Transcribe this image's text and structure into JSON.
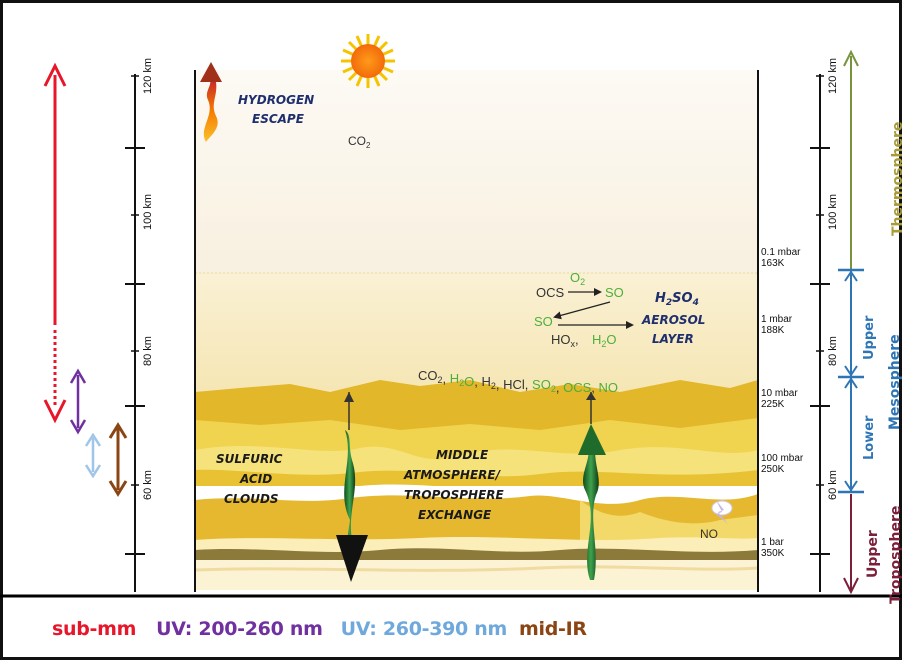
{
  "left_scale": {
    "ticks": [
      "120 km",
      "100 km",
      "80 km",
      "60 km"
    ]
  },
  "right_scale": {
    "ticks": [
      "120 km",
      "100 km",
      "80 km",
      "60 km"
    ]
  },
  "pressure_labels": [
    {
      "p": "0.1 mbar",
      "t": "163K"
    },
    {
      "p": "1 mbar",
      "t": "188K"
    },
    {
      "p": "10 mbar",
      "t": "225K"
    },
    {
      "p": "100 mbar",
      "t": "250K"
    },
    {
      "p": "1 bar",
      "t": "350K"
    }
  ],
  "regions": {
    "hydrogen": [
      "HYDROGEN",
      "ESCAPE"
    ],
    "co2": "CO",
    "co2_sub": "2",
    "aerosol": [
      "AEROSOL",
      "LAYER"
    ],
    "h2so4": {
      "h": "H",
      "s2": "2",
      "so": "SO",
      "s4": "4"
    },
    "clouds": [
      "SULFURIC",
      "ACID",
      "CLOUDS"
    ],
    "exchange": [
      "MIDDLE",
      "ATMOSPHERE/",
      "TROPOSPHERE",
      "EXCHANGE"
    ],
    "no": "NO"
  },
  "chemistry": {
    "ocs": "OCS",
    "o2": "O",
    "o2_sub": "2",
    "so_top": "SO",
    "so_left": "SO",
    "hox": "HO",
    "hox_sub": "x",
    "comma": ",",
    "h2o": "H",
    "h2o_sub": "2",
    "h2o_o": "O"
  },
  "species_line": [
    {
      "t": "CO",
      "s": "2",
      "c": "#333333"
    },
    {
      "t": ", ",
      "s": "",
      "c": "#333333"
    },
    {
      "t": "H",
      "s": "2",
      "c": "#4caf3a"
    },
    {
      "t": "O",
      "s": "",
      "c": "#4caf3a"
    },
    {
      "t": ", H",
      "s": "2",
      "c": "#333333"
    },
    {
      "t": ", HCl, ",
      "s": "",
      "c": "#333333"
    },
    {
      "t": "SO",
      "s": "2",
      "c": "#4caf3a"
    },
    {
      "t": ", ",
      "s": "",
      "c": "#333333"
    },
    {
      "t": "OCS",
      "s": "",
      "c": "#4caf3a"
    },
    {
      "t": ", ",
      "s": "",
      "c": "#333333"
    },
    {
      "t": "NO",
      "s": "",
      "c": "#4caf3a"
    }
  ],
  "layers": {
    "thermosphere": "Thermosphere",
    "upper_meso": "Upper",
    "lower_meso": "Lower",
    "mesosphere": "Mesosphere",
    "upper_tropo": "Upper",
    "troposphere": "Troposphere"
  },
  "legend": {
    "submm": "sub-mm",
    "uv1": "UV: 200-260 nm",
    "uv2": "UV: 260-390 nm",
    "midir": "mid-IR"
  },
  "colors": {
    "submm": "#e8162a",
    "uv1": "#7030a0",
    "uv2": "#6fa8dc",
    "midir": "#8b4513",
    "thermo": "#77933c",
    "meso": "#2e75b6",
    "tropo": "#7b1f3a",
    "chem_green": "#4caf3a"
  }
}
